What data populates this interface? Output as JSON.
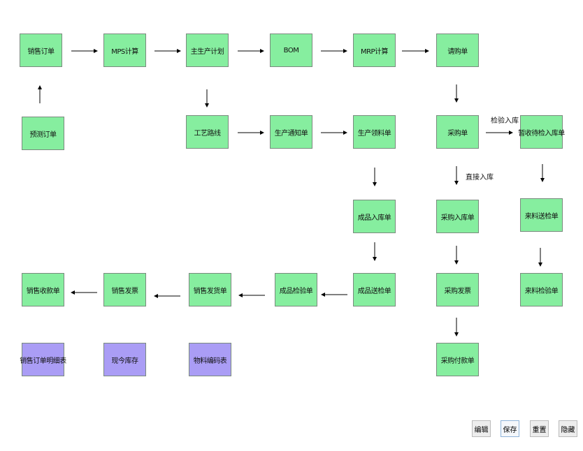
{
  "colors": {
    "process": "#86ee9f",
    "report": "#aa9df5"
  },
  "nodes": {
    "sales_order": "销售订单",
    "mps": "MPS计算",
    "mps_plan": "主生产计划",
    "bom": "BOM",
    "mrp": "MRP计算",
    "requisition": "请购单",
    "forecast": "预测订单",
    "routing": "工艺路线",
    "prod_notice": "生产通知单",
    "prod_pick": "生产领料单",
    "purchase_order": "采购单",
    "temp_receipt": "暂收待检入库单",
    "fg_receipt": "成品入库单",
    "purchase_receipt": "采购入库单",
    "incoming_inspect_req": "来料送检单",
    "sales_receipt": "销售收款单",
    "sales_invoice": "销售发票",
    "sales_delivery": "销售发货单",
    "fg_inspection": "成品检验单",
    "fg_inspect_req": "成品送检单",
    "purchase_invoice": "采购发票",
    "incoming_inspection": "来料检验单",
    "sales_order_detail": "销售订单明细表",
    "current_stock": "现今库存",
    "material_codes": "物料编码表",
    "purchase_payment": "采购付款单"
  },
  "edge_labels": {
    "inspect_in": "检验入库",
    "direct_in": "直接入库"
  },
  "buttons": {
    "edit": "编辑",
    "save": "保存",
    "reset": "重置",
    "hide": "隐藏"
  }
}
